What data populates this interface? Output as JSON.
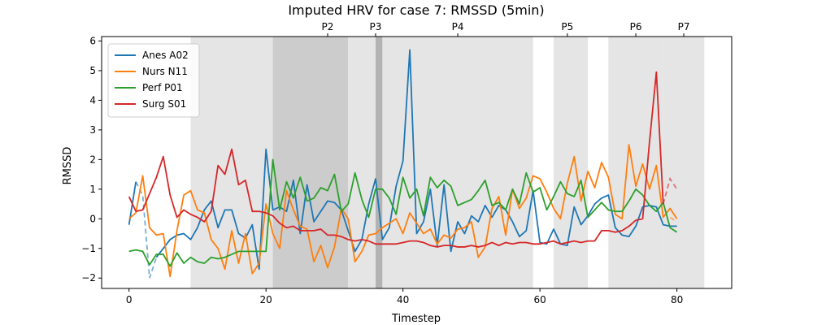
{
  "chart_data": {
    "type": "line",
    "title": "Imputed HRV for case 7: RMSSD (5min)",
    "xlabel": "Timestep",
    "ylabel": "RMSSD",
    "xlim": [
      -4,
      88
    ],
    "ylim": [
      -2.35,
      6.15
    ],
    "xticks": [
      0,
      20,
      40,
      60,
      80
    ],
    "yticks": [
      -2,
      -1,
      0,
      1,
      2,
      3,
      4,
      5,
      6
    ],
    "grid": false,
    "legend_position": "top-left",
    "phases": [
      {
        "label": "",
        "start": 9,
        "end": 21,
        "shade": "#e5e5e5"
      },
      {
        "label": "P2",
        "start": 21,
        "end": 32,
        "shade": "#cccccc"
      },
      {
        "label": "",
        "start": 32,
        "end": 36,
        "shade": "#e5e5e5"
      },
      {
        "label": "P3",
        "start": 36,
        "end": 37,
        "shade": "#b3b3b3"
      },
      {
        "label": "P4",
        "start": 37,
        "end": 59,
        "shade": "#e5e5e5"
      },
      {
        "label": "P5",
        "start": 62,
        "end": 67,
        "shade": "#e5e5e5"
      },
      {
        "label": "P6",
        "start": 70,
        "end": 78,
        "shade": "#e5e5e5"
      },
      {
        "label": "P7",
        "start": 78,
        "end": 84,
        "shade": "#e5e5e5"
      }
    ],
    "phase_tick_positions": [
      29,
      36,
      48,
      64,
      74,
      81
    ],
    "phase_tick_labels": [
      "P2",
      "P3",
      "P4",
      "P5",
      "P6",
      "P7"
    ],
    "series": [
      {
        "name": "Anes A02",
        "color": "#1f77b4",
        "values": [
          -0.2,
          1.25,
          null,
          null,
          -1.3,
          -1.0,
          -0.7,
          -0.55,
          -0.5,
          -0.7,
          -0.3,
          0.3,
          0.6,
          -0.3,
          0.3,
          0.3,
          -0.5,
          -0.65,
          -0.2,
          -1.7,
          2.35,
          0.3,
          0.4,
          0.25,
          1.3,
          -0.5,
          1.15,
          -0.1,
          0.25,
          0.6,
          0.55,
          0.3,
          -0.4,
          -1.1,
          -0.7,
          0.5,
          1.35,
          -0.7,
          -0.3,
          1.1,
          1.95,
          5.7,
          -0.5,
          -0.1,
          1.0,
          -0.9,
          1.15,
          -1.1,
          -0.1,
          -0.5,
          0.1,
          -0.1,
          0.45,
          0.05,
          0.45,
          0.3,
          -0.1,
          -0.6,
          -0.4,
          0.95,
          -0.8,
          -0.85,
          -0.35,
          -0.85,
          -0.9,
          0.4,
          -0.2,
          0.1,
          0.5,
          0.7,
          0.8,
          -0.3,
          -0.55,
          -0.6,
          -0.25,
          0.4,
          0.45,
          0.4,
          -0.2,
          -0.25,
          -0.25
        ],
        "imputed_values": [
          null,
          1.25,
          0.8,
          -2.0,
          -1.3,
          -1.0,
          -0.7,
          -0.55,
          -0.5,
          null,
          null,
          null,
          null,
          null,
          null,
          null,
          null,
          null,
          null,
          null,
          null,
          null,
          null,
          null,
          null,
          null,
          null,
          null,
          null,
          null,
          null,
          null,
          null,
          null,
          null,
          null,
          null,
          null,
          null,
          null,
          null,
          null,
          null,
          null,
          null,
          null,
          null,
          null,
          null,
          null,
          null,
          null,
          null,
          null,
          null,
          null,
          null,
          null,
          null,
          null,
          null,
          null,
          null,
          null,
          null,
          null,
          null,
          null,
          null,
          null,
          null,
          null,
          null,
          null,
          null,
          null,
          null,
          null,
          null,
          null,
          null
        ]
      },
      {
        "name": "Nurs N11",
        "color": "#ff7f0e",
        "values": [
          0.0,
          0.2,
          1.45,
          -0.3,
          -0.55,
          -0.5,
          -1.95,
          -0.4,
          0.8,
          0.95,
          0.3,
          0.2,
          -0.7,
          -1.0,
          -1.7,
          -0.4,
          -1.5,
          -0.5,
          -1.85,
          -1.5,
          0.5,
          -0.5,
          -1.0,
          0.95,
          0.3,
          -0.25,
          -0.35,
          -1.45,
          -0.9,
          -1.65,
          -0.95,
          0.35,
          0.0,
          -1.45,
          -1.1,
          -0.55,
          -0.5,
          -0.3,
          -0.15,
          0.0,
          -0.5,
          0.2,
          -0.15,
          -0.5,
          -0.35,
          -0.85,
          -0.55,
          -0.65,
          -0.35,
          -0.3,
          -0.1,
          -1.3,
          -0.95,
          0.35,
          0.75,
          -0.55,
          1.0,
          0.35,
          0.7,
          1.45,
          1.35,
          0.9,
          0.35,
          0.0,
          1.2,
          2.1,
          0.6,
          1.6,
          1.05,
          1.9,
          1.4,
          0.15,
          0.0,
          2.5,
          1.1,
          1.85,
          1.0,
          1.8,
          0.05,
          0.35,
          0.0
        ],
        "imputed_values": [
          null,
          null,
          null,
          null,
          null,
          null,
          null,
          null,
          null,
          null,
          null,
          null,
          null,
          null,
          null,
          null,
          null,
          null,
          null,
          null,
          null,
          null,
          null,
          null,
          null,
          null,
          null,
          null,
          null,
          null,
          null,
          null,
          null,
          null,
          null,
          null,
          null,
          null,
          null,
          null,
          null,
          null,
          null,
          null,
          null,
          null,
          null,
          null,
          null,
          null,
          null,
          null,
          null,
          null,
          null,
          null,
          null,
          null,
          null,
          null,
          null,
          null,
          null,
          null,
          null,
          null,
          null,
          null,
          null,
          null,
          null,
          null,
          null,
          null,
          null,
          null,
          null,
          null,
          null,
          0.05,
          -0.1
        ]
      },
      {
        "name": "Perf P01",
        "color": "#2ca02c",
        "values": [
          -1.1,
          -1.05,
          -1.1,
          -1.55,
          -1.2,
          -1.2,
          -1.6,
          -1.15,
          -1.5,
          -1.3,
          -1.45,
          -1.5,
          -1.3,
          -1.35,
          -1.3,
          -1.2,
          -1.1,
          -1.1,
          -1.1,
          -1.1,
          -1.1,
          2.0,
          0.3,
          1.25,
          0.7,
          1.4,
          0.6,
          0.7,
          1.05,
          0.95,
          1.5,
          0.25,
          0.5,
          1.55,
          0.65,
          0.05,
          1.0,
          1.0,
          0.7,
          0.15,
          1.4,
          0.7,
          1.0,
          0.1,
          1.4,
          1.05,
          1.3,
          1.1,
          0.45,
          0.55,
          0.65,
          0.95,
          1.3,
          0.45,
          0.55,
          0.3,
          1.0,
          0.5,
          1.55,
          0.9,
          1.05,
          0.3,
          0.75,
          1.25,
          0.85,
          0.75,
          1.3,
          0.05,
          0.3,
          0.55,
          0.3,
          0.25,
          0.25,
          0.6,
          1.0,
          0.8,
          0.45,
          0.25,
          0.55,
          -0.3,
          -0.45
        ],
        "imputed_values": [
          null,
          null,
          null,
          null,
          null,
          null,
          null,
          null,
          null,
          null,
          null,
          null,
          null,
          null,
          null,
          null,
          null,
          null,
          null,
          null,
          null,
          null,
          null,
          null,
          null,
          null,
          null,
          null,
          null,
          null,
          null,
          null,
          null,
          null,
          null,
          null,
          null,
          null,
          null,
          null,
          null,
          null,
          null,
          null,
          null,
          null,
          null,
          null,
          null,
          null,
          null,
          null,
          null,
          null,
          null,
          null,
          null,
          null,
          null,
          null,
          null,
          null,
          null,
          null,
          null,
          null,
          null,
          null,
          null,
          null,
          null,
          null,
          null,
          null,
          null,
          null,
          null,
          null,
          null,
          null,
          null
        ]
      },
      {
        "name": "Surg S01",
        "color": "#d62728",
        "values": [
          0.75,
          0.25,
          0.3,
          0.85,
          1.4,
          2.1,
          0.8,
          0.05,
          0.3,
          0.15,
          0.05,
          -0.1,
          0.25,
          1.8,
          1.5,
          2.35,
          1.15,
          1.3,
          0.25,
          0.25,
          0.2,
          0.1,
          -0.15,
          -0.3,
          -0.25,
          -0.4,
          -0.4,
          -0.4,
          -0.35,
          -0.55,
          -0.55,
          -0.6,
          -0.7,
          -0.75,
          -0.7,
          -0.75,
          -0.85,
          -0.85,
          -0.85,
          -0.85,
          -0.8,
          -0.75,
          -0.75,
          -0.8,
          -0.9,
          -0.95,
          -0.9,
          -0.9,
          -0.95,
          -0.95,
          -0.9,
          -0.95,
          -0.9,
          -0.8,
          -0.9,
          -0.8,
          -0.85,
          -0.8,
          -0.8,
          -0.85,
          -0.85,
          -0.8,
          -0.75,
          -0.85,
          -0.8,
          -0.75,
          -0.8,
          -0.75,
          -0.75,
          -0.4,
          -0.4,
          -0.45,
          -0.4,
          -0.25,
          -0.05,
          0.0,
          2.6,
          4.95,
          0.5,
          null,
          null
        ],
        "imputed_values": [
          null,
          null,
          null,
          null,
          null,
          null,
          null,
          null,
          null,
          null,
          null,
          null,
          null,
          null,
          null,
          null,
          null,
          null,
          null,
          null,
          null,
          null,
          null,
          null,
          null,
          null,
          null,
          null,
          null,
          null,
          null,
          null,
          null,
          null,
          null,
          null,
          null,
          null,
          null,
          null,
          null,
          null,
          null,
          null,
          null,
          null,
          null,
          null,
          null,
          null,
          null,
          null,
          null,
          null,
          null,
          null,
          null,
          null,
          null,
          null,
          null,
          null,
          null,
          null,
          null,
          null,
          null,
          null,
          null,
          null,
          null,
          null,
          null,
          null,
          null,
          null,
          null,
          null,
          0.5,
          1.35,
          1.0
        ]
      }
    ]
  }
}
